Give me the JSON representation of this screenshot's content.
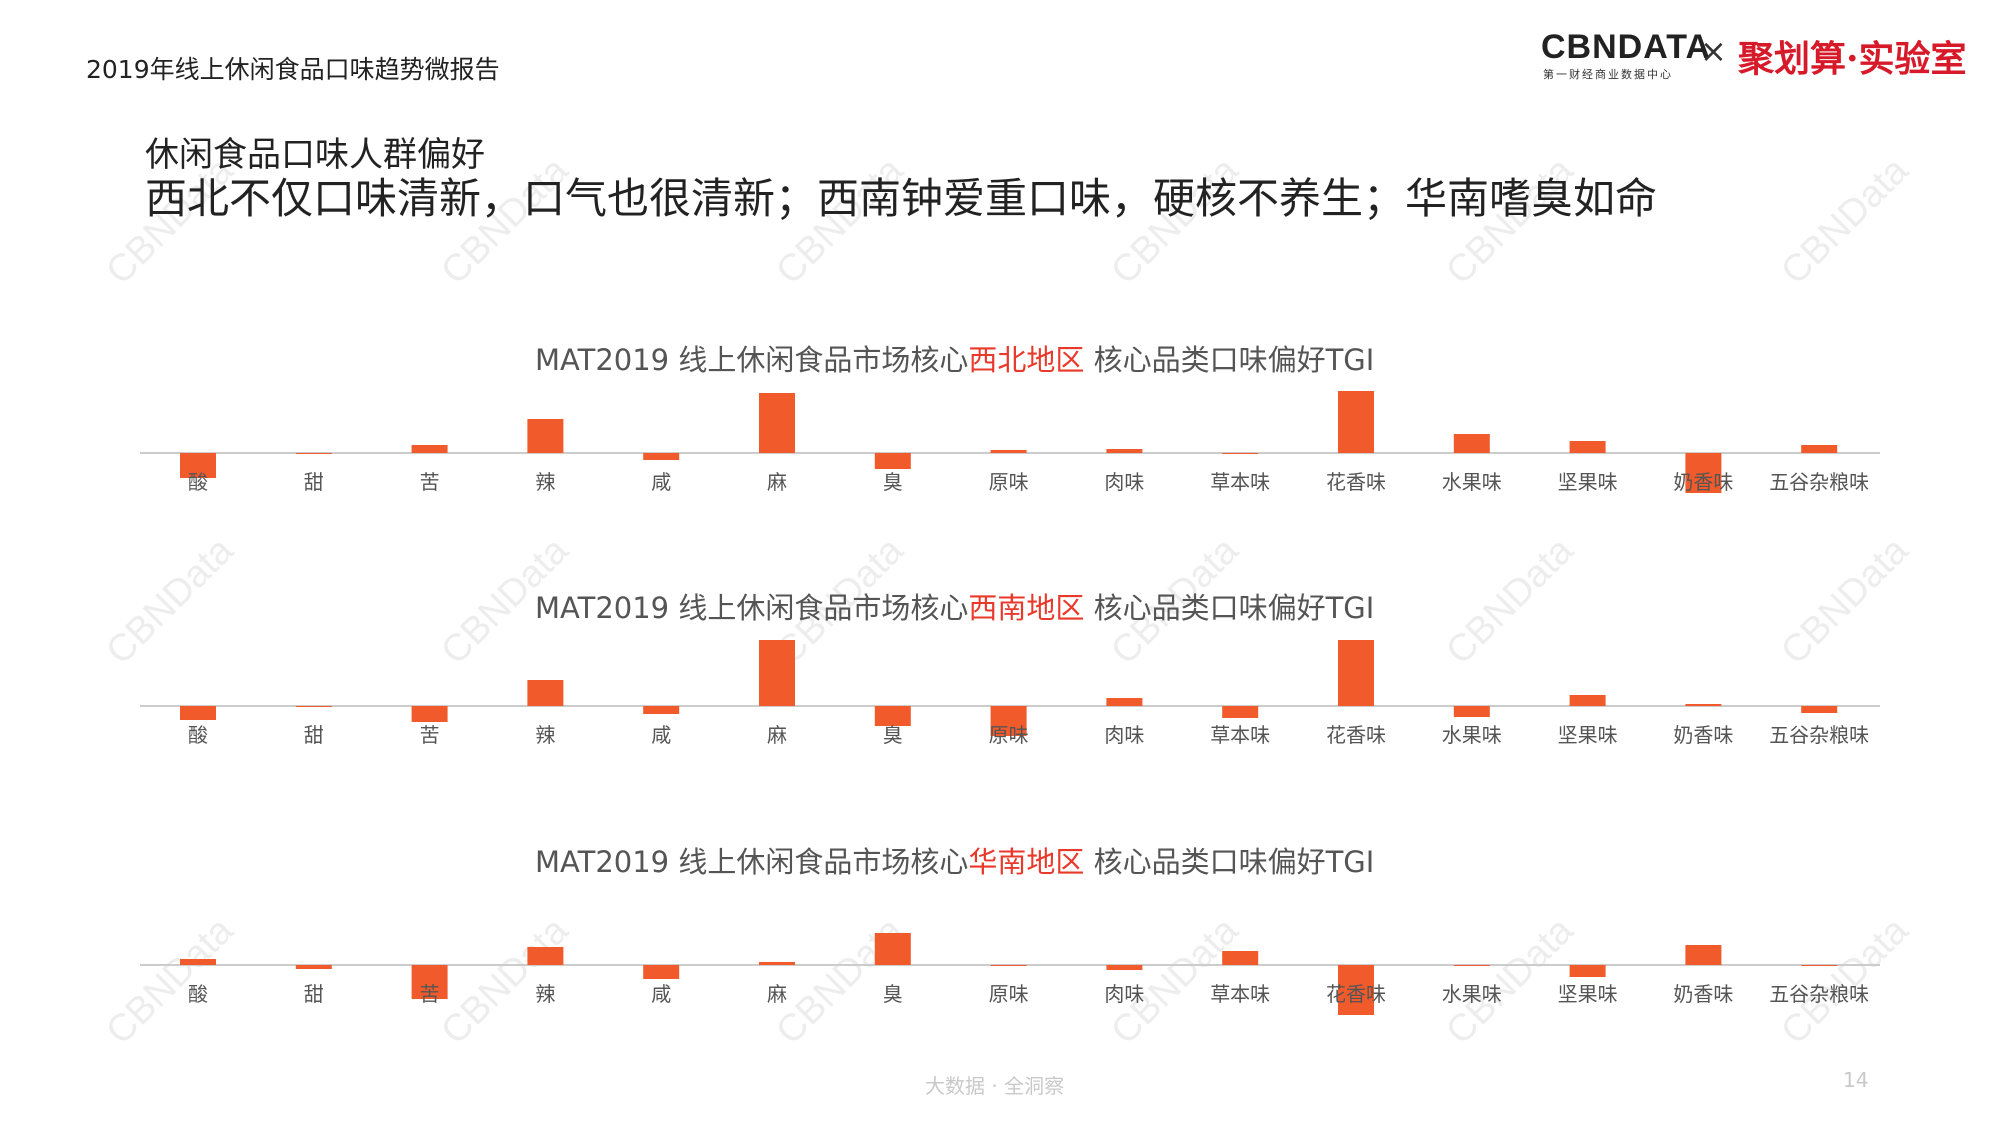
{
  "header": {
    "report_title": "2019年线上休闲食品口味趋势微报告",
    "logo_text": "CBNDATA",
    "logo_sub": "第一财经商业数据中心",
    "cross": "×",
    "partner": "聚划算·实验室"
  },
  "subtitle": "休闲食品口味人群偏好",
  "headline": "西北不仅口味清新，口气也很清新；西南钟爱重口味，硬核不养生；华南嗜臭如命",
  "footer": {
    "text": "大数据 · 全洞察",
    "page": "14"
  },
  "watermark": "CBNData",
  "colors": {
    "bar": "#f15a2b",
    "highlight": "#e8392a",
    "axis": "#cccccc"
  },
  "charts": [
    {
      "prefix": "MAT2019 线上休闲食品市场核心",
      "region": "西北地区",
      "suffix": " 核心品类口味偏好TGI"
    },
    {
      "prefix": "MAT2019 线上休闲食品市场核心",
      "region": "西南地区",
      "suffix": " 核心品类口味偏好TGI"
    },
    {
      "prefix": "MAT2019 线上休闲食品市场核心",
      "region": "华南地区",
      "suffix": " 核心品类口味偏好TGI"
    }
  ],
  "chart_data": [
    {
      "type": "bar",
      "title": "MAT2019 线上休闲食品市场核心西北地区 核心品类口味偏好TGI",
      "categories": [
        "酸",
        "甜",
        "苦",
        "辣",
        "咸",
        "麻",
        "臭",
        "原味",
        "肉味",
        "草本味",
        "花香味",
        "水果味",
        "坚果味",
        "奶香味",
        "五谷杂粮味"
      ],
      "values": [
        -25,
        0,
        8,
        34,
        -7,
        60,
        -16,
        3,
        4,
        -1,
        62,
        19,
        12,
        -40,
        8
      ]
    },
    {
      "type": "bar",
      "title": "MAT2019 线上休闲食品市场核心西南地区 核心品类口味偏好TGI",
      "categories": [
        "酸",
        "甜",
        "苦",
        "辣",
        "咸",
        "麻",
        "臭",
        "原味",
        "肉味",
        "草本味",
        "花香味",
        "水果味",
        "坚果味",
        "奶香味",
        "五谷杂粮味"
      ],
      "values": [
        -14,
        -1,
        -16,
        26,
        -8,
        66,
        -20,
        -30,
        8,
        -12,
        66,
        -11,
        11,
        2,
        -7
      ]
    },
    {
      "type": "bar",
      "title": "MAT2019 线上休闲食品市场核心华南地区 核心品类口味偏好TGI",
      "categories": [
        "酸",
        "甜",
        "苦",
        "辣",
        "咸",
        "麻",
        "臭",
        "原味",
        "肉味",
        "草本味",
        "花香味",
        "水果味",
        "坚果味",
        "奶香味",
        "五谷杂粮味"
      ],
      "values": [
        6,
        -4,
        -34,
        18,
        -14,
        3,
        32,
        -1,
        -5,
        14,
        -50,
        0,
        -12,
        20,
        0
      ]
    }
  ]
}
